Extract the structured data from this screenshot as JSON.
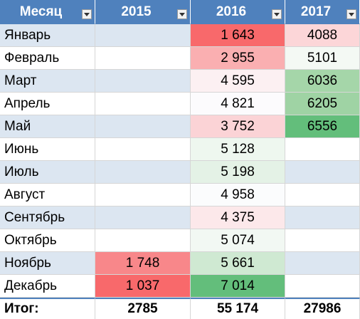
{
  "headers": [
    "Месяц",
    "2015",
    "2016",
    "2017"
  ],
  "colors": {
    "header": "#4f81bd",
    "band": "#dce6f1",
    "plain": "#ffffff",
    "total_line": "#4f81bd"
  },
  "rows": [
    {
      "month": "Январь",
      "band": true,
      "v2015": "",
      "v2016": "1 643",
      "v2017": "4088",
      "c2015": "",
      "c2016": "#f8696b",
      "c2017": "#fcd6d8"
    },
    {
      "month": "Февраль",
      "band": false,
      "v2015": "",
      "v2016": "2 955",
      "v2017": "5101",
      "c2015": "",
      "c2016": "#faafb1",
      "c2017": "#f4f9f4"
    },
    {
      "month": "Март",
      "band": true,
      "v2015": "",
      "v2016": "4 595",
      "v2017": "6036",
      "c2015": "",
      "c2016": "#fcf0f2",
      "c2017": "#a5d6a9"
    },
    {
      "month": "Апрель",
      "band": false,
      "v2015": "",
      "v2016": "4 821",
      "v2017": "6205",
      "c2015": "",
      "c2016": "#fcfbfd",
      "c2017": "#9fd3a4"
    },
    {
      "month": "Май",
      "band": true,
      "v2015": "",
      "v2016": "3 752",
      "v2017": "6556",
      "c2015": "",
      "c2016": "#fbd3d6",
      "c2017": "#63be7b"
    },
    {
      "month": "Июнь",
      "band": false,
      "v2015": "",
      "v2016": "5 128",
      "v2017": "",
      "c2015": "",
      "c2016": "#eef7ef",
      "c2017": ""
    },
    {
      "month": "Июль",
      "band": true,
      "v2015": "",
      "v2016": "5 198",
      "v2017": "",
      "c2015": "",
      "c2016": "#e4f2e6",
      "c2017": ""
    },
    {
      "month": "Август",
      "band": false,
      "v2015": "",
      "v2016": "4 958",
      "v2017": "",
      "c2015": "",
      "c2016": "#fbfcfd",
      "c2017": ""
    },
    {
      "month": "Сентябрь",
      "band": true,
      "v2015": "",
      "v2016": "4 375",
      "v2017": "",
      "c2015": "",
      "c2016": "#fce8ea",
      "c2017": ""
    },
    {
      "month": "Октябрь",
      "band": false,
      "v2015": "",
      "v2016": "5 074",
      "v2017": "",
      "c2015": "",
      "c2016": "#f2f8f3",
      "c2017": ""
    },
    {
      "month": "Ноябрь",
      "band": true,
      "v2015": "1 748",
      "v2016": "5 661",
      "v2017": "",
      "c2015": "#f8878a",
      "c2016": "#cfe9d2",
      "c2017": ""
    },
    {
      "month": "Декабрь",
      "band": false,
      "v2015": "1 037",
      "v2016": "7 014",
      "v2017": "",
      "c2015": "#f8696b",
      "c2016": "#63be7b",
      "c2017": ""
    }
  ],
  "total": {
    "label": "Итог:",
    "v2015": "2785",
    "v2016": "55 174",
    "v2017": "27986"
  }
}
